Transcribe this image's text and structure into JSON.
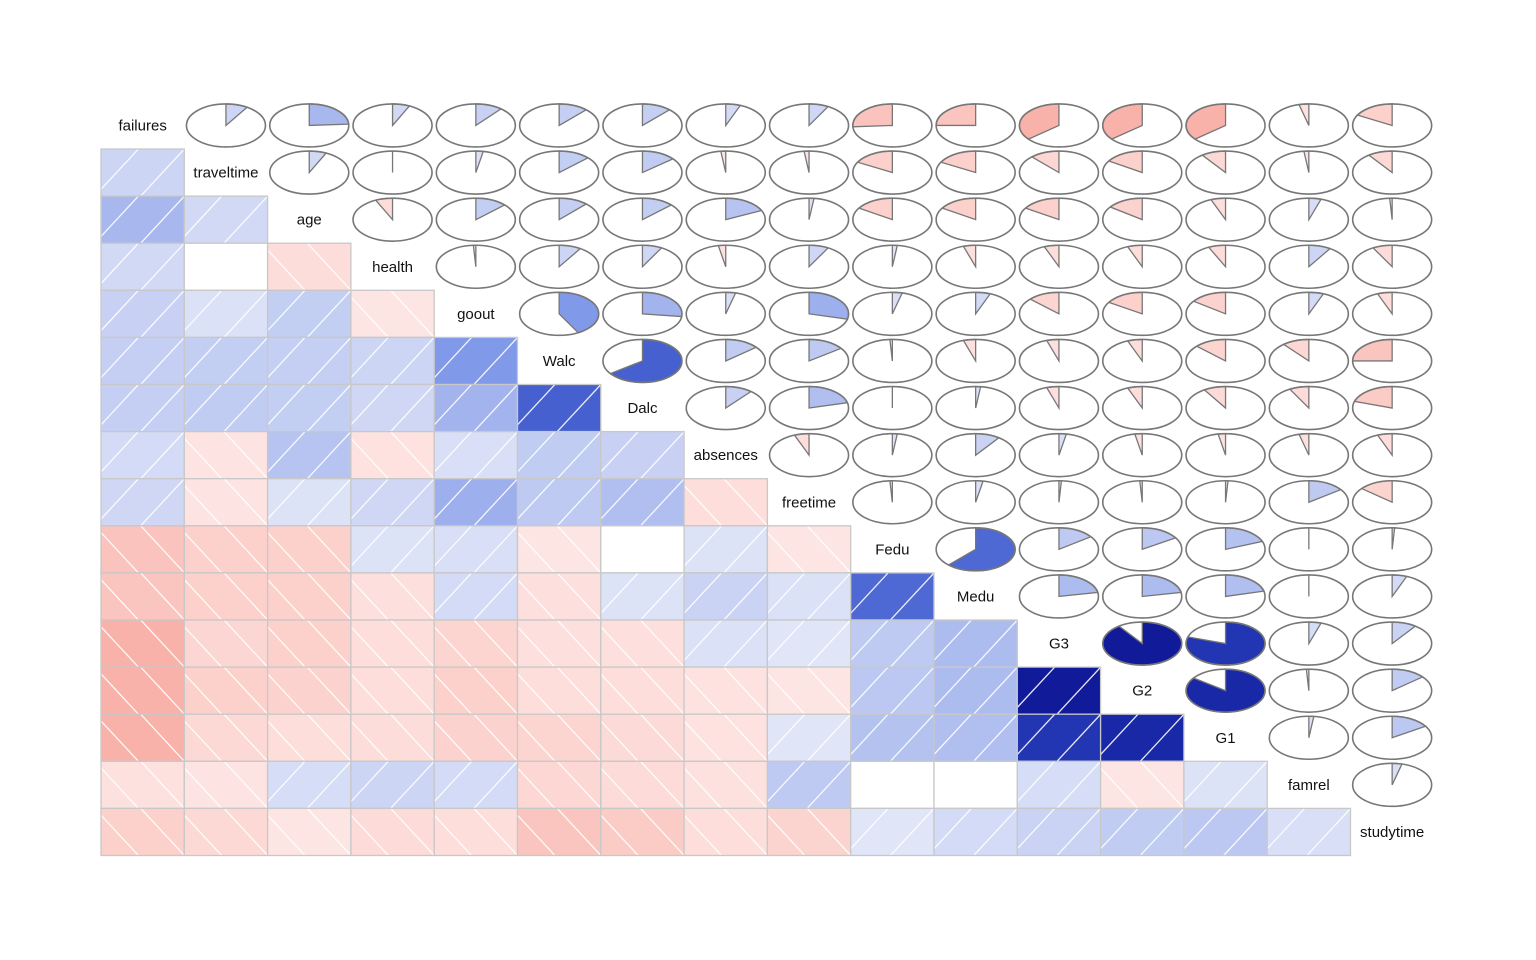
{
  "chart_data": {
    "type": "heatmap",
    "variables": [
      "failures",
      "traveltime",
      "age",
      "health",
      "goout",
      "Walc",
      "Dalc",
      "absences",
      "freetime",
      "Fedu",
      "Medu",
      "G3",
      "G2",
      "G1",
      "famrel",
      "studytime"
    ],
    "correlation_matrix": [
      [
        1.0,
        0.09,
        0.24,
        0.07,
        0.11,
        0.12,
        0.12,
        0.06,
        0.08,
        -0.26,
        -0.25,
        -0.36,
        -0.36,
        -0.36,
        -0.04,
        -0.17
      ],
      [
        0.09,
        1.0,
        0.07,
        0.0,
        0.03,
        0.13,
        0.14,
        -0.02,
        -0.02,
        -0.17,
        -0.17,
        -0.12,
        -0.16,
        -0.1,
        -0.02,
        -0.1
      ],
      [
        0.24,
        0.07,
        1.0,
        -0.07,
        0.13,
        0.12,
        0.13,
        0.18,
        0.02,
        -0.16,
        -0.16,
        -0.16,
        -0.15,
        -0.06,
        0.05,
        -0.01
      ],
      [
        0.07,
        0.0,
        -0.07,
        1.0,
        -0.01,
        0.09,
        0.08,
        -0.03,
        0.08,
        0.02,
        -0.05,
        -0.06,
        -0.06,
        -0.07,
        0.09,
        -0.08
      ],
      [
        0.11,
        0.03,
        0.13,
        -0.01,
        1.0,
        0.42,
        0.27,
        0.04,
        0.29,
        0.04,
        0.06,
        -0.13,
        -0.16,
        -0.15,
        0.06,
        -0.06
      ],
      [
        0.12,
        0.13,
        0.12,
        0.09,
        0.42,
        1.0,
        0.65,
        0.14,
        0.15,
        -0.01,
        -0.05,
        -0.05,
        -0.06,
        -0.13,
        -0.11,
        -0.25
      ],
      [
        0.12,
        0.14,
        0.13,
        0.08,
        0.27,
        0.65,
        1.0,
        0.11,
        0.21,
        0.0,
        0.02,
        -0.05,
        -0.06,
        -0.09,
        -0.08,
        -0.2
      ],
      [
        0.06,
        -0.02,
        0.18,
        -0.03,
        0.04,
        0.14,
        0.11,
        1.0,
        -0.06,
        0.02,
        0.1,
        0.03,
        -0.03,
        -0.03,
        -0.04,
        -0.06
      ],
      [
        0.08,
        -0.02,
        0.02,
        0.08,
        0.29,
        0.15,
        0.21,
        -0.06,
        1.0,
        -0.01,
        0.03,
        0.01,
        -0.01,
        0.01,
        0.15,
        -0.14
      ],
      [
        -0.26,
        -0.17,
        -0.16,
        0.02,
        0.04,
        -0.01,
        0.0,
        0.02,
        -0.01,
        1.0,
        0.62,
        0.15,
        0.16,
        0.19,
        -0.0,
        0.01
      ],
      [
        -0.25,
        -0.17,
        -0.16,
        -0.05,
        0.06,
        -0.05,
        0.02,
        0.1,
        0.03,
        0.62,
        1.0,
        0.22,
        0.22,
        0.21,
        -0.0,
        0.06
      ],
      [
        -0.36,
        -0.12,
        -0.16,
        -0.06,
        -0.13,
        -0.05,
        -0.05,
        0.03,
        0.01,
        0.15,
        0.22,
        1.0,
        0.9,
        0.8,
        0.05,
        0.1
      ],
      [
        -0.36,
        -0.16,
        -0.15,
        -0.06,
        -0.16,
        -0.06,
        -0.06,
        -0.03,
        -0.01,
        0.16,
        0.22,
        0.9,
        1.0,
        0.85,
        -0.01,
        0.14
      ],
      [
        -0.36,
        -0.1,
        -0.06,
        -0.07,
        -0.15,
        -0.13,
        -0.09,
        -0.03,
        0.01,
        0.19,
        0.21,
        0.8,
        0.85,
        1.0,
        0.02,
        0.16
      ],
      [
        -0.04,
        -0.02,
        0.05,
        0.09,
        0.06,
        -0.11,
        -0.08,
        -0.04,
        0.15,
        -0.0,
        -0.0,
        0.05,
        -0.01,
        0.02,
        1.0,
        0.04
      ],
      [
        -0.17,
        -0.1,
        -0.01,
        -0.08,
        -0.06,
        -0.25,
        -0.2,
        -0.06,
        -0.14,
        0.01,
        0.06,
        0.1,
        0.14,
        0.16,
        0.04,
        1.0
      ]
    ],
    "lower_panel": "shade",
    "upper_panel": "pie",
    "diagonal": "variable names",
    "range": [
      -1,
      1
    ],
    "colors": {
      "negative": "#b2182b",
      "positive": "#00007f",
      "zero": "#ffffff"
    },
    "title": "",
    "grid": false
  }
}
